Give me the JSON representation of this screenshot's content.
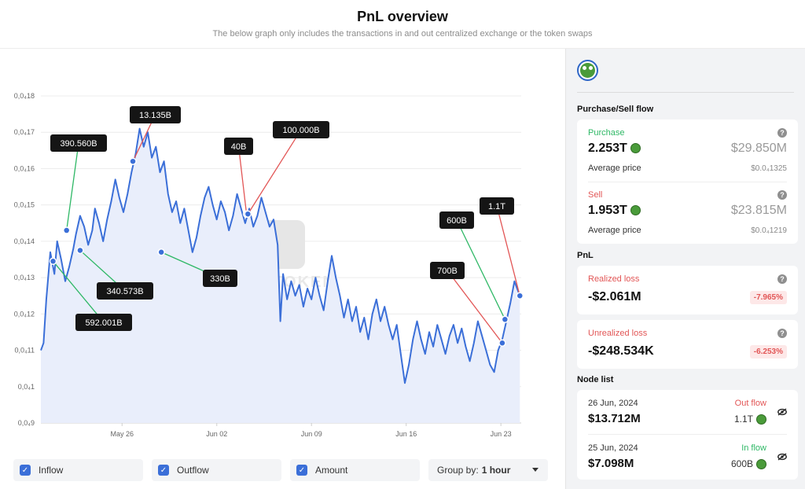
{
  "header": {
    "title": "PnL overview",
    "subtitle": "The below graph only includes the transactions in and out centralized exchange or the token swaps"
  },
  "chart_data": {
    "type": "line",
    "y_ticks": [
      "0,0₄18",
      "0,0₄17",
      "0,0₄16",
      "0,0₄15",
      "0,0₄14",
      "0,0₄13",
      "0,0₄12",
      "0,0₄11",
      "0,0₄1",
      "0,0₄9"
    ],
    "y_values": [
      0.00018,
      0.00017,
      0.00016,
      0.00015,
      0.00014,
      0.00013,
      0.00012,
      0.00011,
      0.0001,
      9e-05
    ],
    "ylim": [
      9e-05,
      0.00018
    ],
    "x_ticks": [
      "May 26",
      "Jun 02",
      "Jun 09",
      "Jun 16",
      "Jun 23"
    ],
    "x_tick_days": [
      6,
      13,
      20,
      27,
      34
    ],
    "xlim_days": [
      0,
      35.5
    ],
    "watermark": "NOTOKEN",
    "line_color": "#3b6fd8",
    "fill_color": "#e9eefb",
    "series": [
      {
        "points": [
          [
            0.0,
            0.00011
          ],
          [
            0.2,
            0.000112
          ],
          [
            0.4,
            0.000124
          ],
          [
            0.7,
            0.000137
          ],
          [
            1.0,
            0.000131
          ],
          [
            1.2,
            0.00014
          ],
          [
            1.5,
            0.000135
          ],
          [
            1.8,
            0.000129
          ],
          [
            2.1,
            0.000133
          ],
          [
            2.4,
            0.000138
          ],
          [
            2.6,
            0.000142
          ],
          [
            2.9,
            0.000147
          ],
          [
            3.2,
            0.000144
          ],
          [
            3.5,
            0.000139
          ],
          [
            3.8,
            0.000143
          ],
          [
            4.0,
            0.000149
          ],
          [
            4.3,
            0.000145
          ],
          [
            4.6,
            0.00014
          ],
          [
            4.9,
            0.000146
          ],
          [
            5.2,
            0.000151
          ],
          [
            5.5,
            0.000157
          ],
          [
            5.8,
            0.000152
          ],
          [
            6.1,
            0.000148
          ],
          [
            6.4,
            0.000153
          ],
          [
            6.7,
            0.000159
          ],
          [
            7.0,
            0.000164
          ],
          [
            7.3,
            0.000171
          ],
          [
            7.6,
            0.000166
          ],
          [
            7.9,
            0.00017
          ],
          [
            8.2,
            0.000163
          ],
          [
            8.5,
            0.000166
          ],
          [
            8.8,
            0.000159
          ],
          [
            9.1,
            0.000162
          ],
          [
            9.4,
            0.000153
          ],
          [
            9.7,
            0.000148
          ],
          [
            10.0,
            0.000151
          ],
          [
            10.3,
            0.000145
          ],
          [
            10.6,
            0.000149
          ],
          [
            10.9,
            0.000143
          ],
          [
            11.2,
            0.000137
          ],
          [
            11.5,
            0.000141
          ],
          [
            11.8,
            0.000147
          ],
          [
            12.1,
            0.000152
          ],
          [
            12.4,
            0.000155
          ],
          [
            12.7,
            0.00015
          ],
          [
            13.0,
            0.000146
          ],
          [
            13.3,
            0.000151
          ],
          [
            13.6,
            0.000148
          ],
          [
            13.9,
            0.000143
          ],
          [
            14.2,
            0.000147
          ],
          [
            14.5,
            0.000153
          ],
          [
            14.8,
            0.000149
          ],
          [
            15.1,
            0.000145
          ],
          [
            15.4,
            0.000149
          ],
          [
            15.7,
            0.000144
          ],
          [
            16.0,
            0.000147
          ],
          [
            16.3,
            0.000152
          ],
          [
            16.6,
            0.000148
          ],
          [
            16.9,
            0.000144
          ],
          [
            17.2,
            0.000146
          ],
          [
            17.5,
            0.000139
          ],
          [
            17.7,
            0.000118
          ],
          [
            17.9,
            0.000131
          ],
          [
            18.2,
            0.000124
          ],
          [
            18.5,
            0.000129
          ],
          [
            18.8,
            0.000125
          ],
          [
            19.1,
            0.000128
          ],
          [
            19.4,
            0.000122
          ],
          [
            19.7,
            0.000127
          ],
          [
            20.0,
            0.000124
          ],
          [
            20.3,
            0.00013
          ],
          [
            20.6,
            0.000125
          ],
          [
            20.9,
            0.000121
          ],
          [
            21.2,
            0.000129
          ],
          [
            21.5,
            0.000136
          ],
          [
            21.8,
            0.00013
          ],
          [
            22.1,
            0.000125
          ],
          [
            22.4,
            0.000119
          ],
          [
            22.7,
            0.000124
          ],
          [
            23.0,
            0.000118
          ],
          [
            23.3,
            0.000122
          ],
          [
            23.6,
            0.000115
          ],
          [
            23.9,
            0.000119
          ],
          [
            24.2,
            0.000113
          ],
          [
            24.5,
            0.00012
          ],
          [
            24.8,
            0.000124
          ],
          [
            25.1,
            0.000118
          ],
          [
            25.4,
            0.000122
          ],
          [
            25.7,
            0.000117
          ],
          [
            26.0,
            0.000113
          ],
          [
            26.3,
            0.000117
          ],
          [
            26.6,
            0.000109
          ],
          [
            26.9,
            0.000101
          ],
          [
            27.2,
            0.000106
          ],
          [
            27.5,
            0.000113
          ],
          [
            27.8,
            0.000118
          ],
          [
            28.1,
            0.000113
          ],
          [
            28.4,
            0.000109
          ],
          [
            28.7,
            0.000115
          ],
          [
            29.0,
            0.000111
          ],
          [
            29.3,
            0.000117
          ],
          [
            29.6,
            0.000113
          ],
          [
            29.9,
            0.000109
          ],
          [
            30.2,
            0.000114
          ],
          [
            30.5,
            0.000117
          ],
          [
            30.8,
            0.000112
          ],
          [
            31.1,
            0.000116
          ],
          [
            31.4,
            0.000111
          ],
          [
            31.7,
            0.000107
          ],
          [
            32.0,
            0.000112
          ],
          [
            32.3,
            0.000118
          ],
          [
            32.6,
            0.000114
          ],
          [
            32.9,
            0.00011
          ],
          [
            33.2,
            0.000106
          ],
          [
            33.5,
            0.000104
          ],
          [
            33.8,
            0.00011
          ],
          [
            34.1,
            0.000113
          ],
          [
            34.4,
            0.000118
          ],
          [
            34.7,
            0.000123
          ],
          [
            35.0,
            0.000129
          ],
          [
            35.2,
            0.000127
          ],
          [
            35.4,
            0.000125
          ]
        ]
      }
    ],
    "annotations": [
      {
        "label": "390.560B",
        "x": 1.9,
        "y": 0.000143,
        "flow": "in"
      },
      {
        "label": "13.135B",
        "x": 6.8,
        "y": 0.000162,
        "flow": "out"
      },
      {
        "label": "592.001B",
        "x": 0.9,
        "y": 0.0001345,
        "flow": "in"
      },
      {
        "label": "340.573B",
        "x": 2.9,
        "y": 0.0001375,
        "flow": "in"
      },
      {
        "label": "330B",
        "x": 8.9,
        "y": 0.000137,
        "flow": "in"
      },
      {
        "label": "40B",
        "x": 15.2,
        "y": 0.0001475,
        "flow": "out"
      },
      {
        "label": "100.000B",
        "x": 15.3,
        "y": 0.0001475,
        "flow": "out"
      },
      {
        "label": "600B",
        "x": 34.3,
        "y": 0.0001185,
        "flow": "in"
      },
      {
        "label": "700B",
        "x": 34.1,
        "y": 0.000112,
        "flow": "out"
      },
      {
        "label": "1.1T",
        "x": 35.4,
        "y": 0.000125,
        "flow": "out"
      }
    ],
    "grid": true,
    "legend": "none"
  },
  "controls": {
    "inflow_label": "Inflow",
    "outflow_label": "Outflow",
    "amount_label": "Amount",
    "group_by_label": "Group by:",
    "group_by_value": "1 hour"
  },
  "side": {
    "purchase_sell_title": "Purchase/Sell flow",
    "purchase": {
      "label": "Purchase",
      "amount": "2.253T",
      "usd": "$29.850M",
      "avg_label": "Average price",
      "avg_value": "$0.0₄1325"
    },
    "sell": {
      "label": "Sell",
      "amount": "1.953T",
      "usd": "$23.815M",
      "avg_label": "Average price",
      "avg_value": "$0.0₄1219"
    },
    "pnl_title": "PnL",
    "realized": {
      "label": "Realized loss",
      "value": "-$2.061M",
      "pct": "-7.965%"
    },
    "unrealized": {
      "label": "Unrealized loss",
      "value": "-$248.534K",
      "pct": "-6.253%"
    },
    "node_list_title": "Node list",
    "nodes": [
      {
        "date": "26 Jun, 2024",
        "flow": "Out flow",
        "value": "$13.712M",
        "amount": "1.1T"
      },
      {
        "date": "25 Jun, 2024",
        "flow": "In flow",
        "value": "$7.098M",
        "amount": "600B"
      }
    ],
    "help_glyph": "?",
    "colors": {
      "in": "#2fb866",
      "out": "#e25656",
      "accent": "#3b6fd8"
    }
  }
}
